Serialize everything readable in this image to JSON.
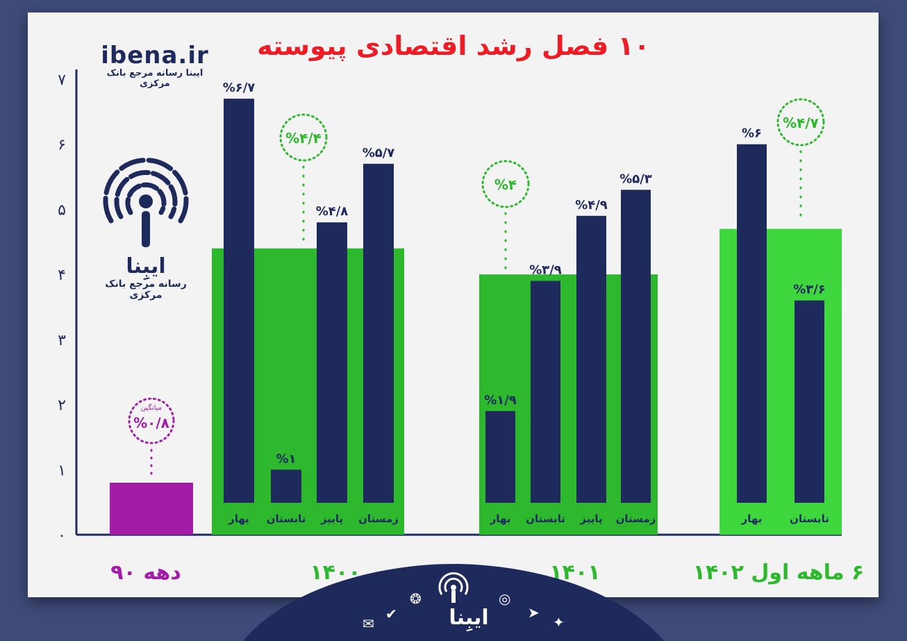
{
  "title": "۱۰ فصل رشد اقتصادی پیوسته",
  "brand": {
    "site": "ibena.ir",
    "tagline": "ایبنا رسانه مرجع بانک مرکزی",
    "logo_name": "ایبِنا",
    "logo_tagline": "رسانه مرجع بانک مرکزی"
  },
  "footer": {
    "name": "ایبِنا",
    "icons": [
      "email-icon",
      "verified-icon",
      "aparat-icon",
      "ibena-logo-icon",
      "instagram-icon",
      "telegram-icon",
      "twitter-icon"
    ]
  },
  "colors": {
    "bar": "#1f2a5c",
    "green": "#2eb82e",
    "purple": "#a21ca8",
    "title": "#ee1c25",
    "background": "#3e4a78"
  },
  "chart_data": {
    "type": "bar",
    "ylim": [
      0,
      7
    ],
    "yticks": [
      "۰",
      "۱",
      "۲",
      "۳",
      "۴",
      "۵",
      "۶",
      "۷"
    ],
    "groups": [
      {
        "label": "دهه ۹۰",
        "color": "#a21ca8",
        "average_caption": "میانگین",
        "average_label": "%۰/۸",
        "average": 0.8,
        "bars": []
      },
      {
        "label": "۱۴۰۰",
        "color": "#2eb82e",
        "average_label": "%۴/۴",
        "average": 4.4,
        "bars": [
          {
            "season": "بهار",
            "value": 6.7,
            "label": "%۶/۷"
          },
          {
            "season": "تابستان",
            "value": 1.0,
            "label": "%۱"
          },
          {
            "season": "پاییز",
            "value": 4.8,
            "label": "%۴/۸"
          },
          {
            "season": "زمستان",
            "value": 5.7,
            "label": "%۵/۷"
          }
        ]
      },
      {
        "label": "۱۴۰۱",
        "color": "#2eb82e",
        "average_label": "%۴",
        "average": 4.0,
        "bars": [
          {
            "season": "بهار",
            "value": 1.9,
            "label": "%۱/۹"
          },
          {
            "season": "تابستان",
            "value": 3.9,
            "label": "%۳/۹"
          },
          {
            "season": "پاییز",
            "value": 4.9,
            "label": "%۴/۹"
          },
          {
            "season": "زمستان",
            "value": 5.3,
            "label": "%۵/۳"
          }
        ]
      },
      {
        "label": "۶ ماهه اول ۱۴۰۲",
        "color": "#2eb82e",
        "average_label": "%۴/۷",
        "average": 4.7,
        "bars": [
          {
            "season": "بهار",
            "value": 6.0,
            "label": "%۶"
          },
          {
            "season": "تابستان",
            "value": 3.6,
            "label": "%۳/۶"
          }
        ]
      }
    ]
  }
}
